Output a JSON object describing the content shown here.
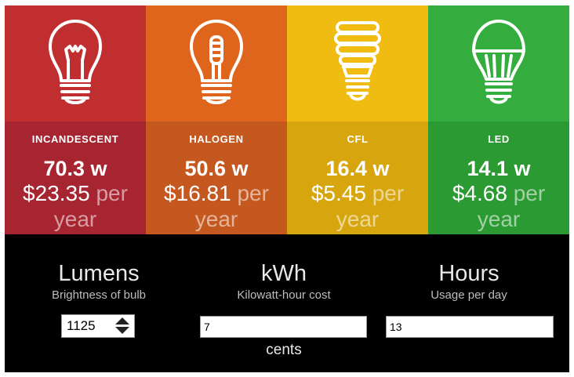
{
  "bulbs": [
    {
      "name": "INCANDESCENT",
      "watts": "70.3 w",
      "cost": "$23.35",
      "unit": "per year",
      "icon": "incandescent-bulb-icon"
    },
    {
      "name": "HALOGEN",
      "watts": "50.6 w",
      "cost": "$16.81",
      "unit": "per year",
      "icon": "halogen-bulb-icon"
    },
    {
      "name": "CFL",
      "watts": "16.4 w",
      "cost": "$5.45",
      "unit": "per year",
      "icon": "cfl-bulb-icon"
    },
    {
      "name": "LED",
      "watts": "14.1 w",
      "cost": "$4.68",
      "unit": "per year",
      "icon": "led-bulb-icon"
    }
  ],
  "colors": {
    "incandescent": "#c12e2f",
    "halogen": "#e0651c",
    "cfl": "#f0bc12",
    "led": "#35ad3e",
    "controls_bg": "#000000"
  },
  "controls": {
    "lumens": {
      "title": "Lumens",
      "subtitle": "Brightness of bulb",
      "value": "1125"
    },
    "kwh": {
      "title": "kWh",
      "subtitle": "Kilowatt-hour cost",
      "value": "7",
      "suffix": "cents"
    },
    "hours": {
      "title": "Hours",
      "subtitle": "Usage per day",
      "value": "13"
    }
  }
}
